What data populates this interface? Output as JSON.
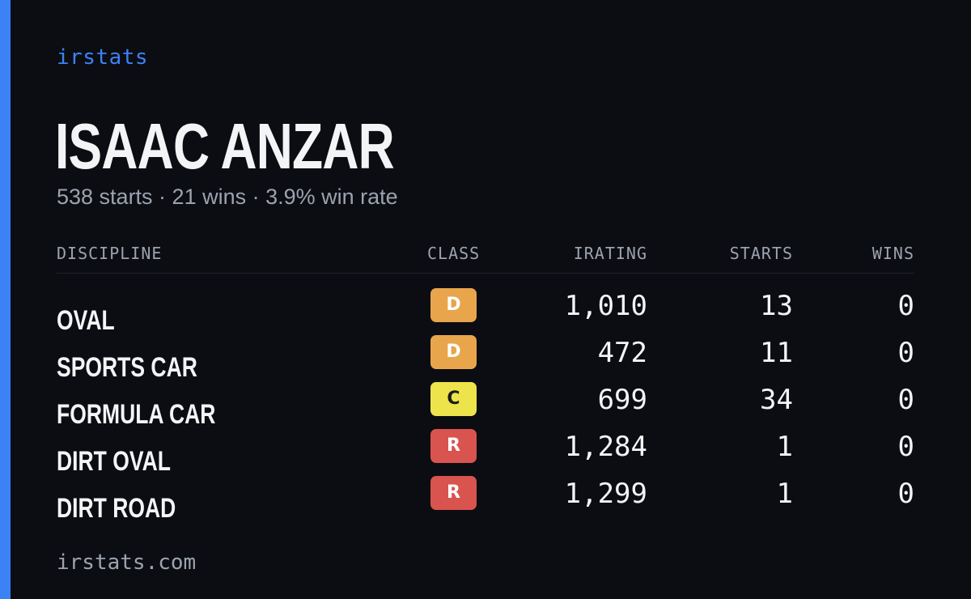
{
  "brand": "irstats",
  "player": {
    "name": "ISAAC ANZAR",
    "summary": "538 starts · 21 wins · 3.9% win rate"
  },
  "table": {
    "headers": {
      "discipline": "DISCIPLINE",
      "class": "CLASS",
      "irating": "IRATING",
      "starts": "STARTS",
      "wins": "WINS"
    },
    "rows": [
      {
        "discipline": "OVAL",
        "class": "D",
        "irating": "1,010",
        "starts": "13",
        "wins": "0"
      },
      {
        "discipline": "SPORTS CAR",
        "class": "D",
        "irating": "472",
        "starts": "11",
        "wins": "0"
      },
      {
        "discipline": "FORMULA CAR",
        "class": "C",
        "irating": "699",
        "starts": "34",
        "wins": "0"
      },
      {
        "discipline": "DIRT OVAL",
        "class": "R",
        "irating": "1,284",
        "starts": "1",
        "wins": "0"
      },
      {
        "discipline": "DIRT ROAD",
        "class": "R",
        "irating": "1,299",
        "starts": "1",
        "wins": "0"
      }
    ]
  },
  "class_colors": {
    "D": {
      "bg": "#e8a54b",
      "fg": "#ffffff"
    },
    "C": {
      "bg": "#ece44a",
      "fg": "#1a1a1a"
    },
    "R": {
      "bg": "#d9534f",
      "fg": "#ffffff"
    }
  },
  "colors": {
    "accent": "#3b82f6",
    "background": "#0b0d12",
    "text": "#f3f4f6",
    "muted": "#9ca3af"
  },
  "footer": {
    "url": "irstats.com"
  }
}
